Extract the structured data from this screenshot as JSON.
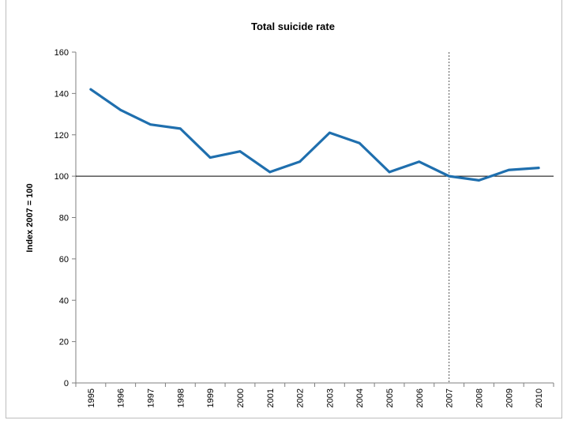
{
  "chart_data": {
    "type": "line",
    "title": "Total suicide rate",
    "xlabel": "",
    "ylabel": "Index 2007 = 100",
    "ylim": [
      0,
      160
    ],
    "yticks": [
      0,
      20,
      40,
      60,
      80,
      100,
      120,
      140,
      160
    ],
    "categories": [
      "1995",
      "1996",
      "1997",
      "1998",
      "1999",
      "2000",
      "2001",
      "2002",
      "2003",
      "2004",
      "2005",
      "2006",
      "2007",
      "2008",
      "2009",
      "2010"
    ],
    "series": [
      {
        "values": [
          142,
          132,
          125,
          123,
          109,
          112,
          102,
          107,
          121,
          116,
          102,
          107,
          100,
          98,
          103,
          104
        ]
      }
    ],
    "reference_line_y": 100,
    "reference_line_x": "2007",
    "line_color": "#1f6fae",
    "grid": false,
    "legend": "none"
  }
}
